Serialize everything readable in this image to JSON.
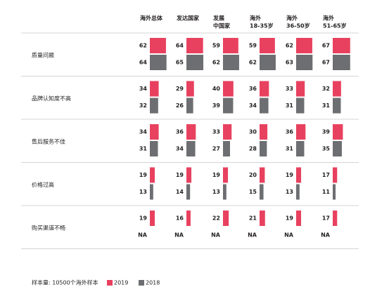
{
  "chart_data": {
    "type": "bar",
    "columns": [
      [
        "海外总体"
      ],
      [
        "发达国家"
      ],
      [
        "发展",
        "中国家"
      ],
      [
        "海外",
        "18-35岁"
      ],
      [
        "海外",
        "36-50岁"
      ],
      [
        "海外",
        "51-65岁"
      ]
    ],
    "categories": [
      "质量问题",
      "品牌认知度不高",
      "售后服务不佳",
      "价格过高",
      "购买渠道不畅"
    ],
    "series": [
      {
        "name": "2019",
        "color": "#e8415f",
        "values": [
          [
            62,
            64,
            59,
            59,
            62,
            67
          ],
          [
            34,
            29,
            40,
            36,
            33,
            32
          ],
          [
            34,
            36,
            33,
            30,
            36,
            39
          ],
          [
            19,
            19,
            19,
            20,
            19,
            17
          ],
          [
            19,
            16,
            22,
            21,
            19,
            17
          ]
        ]
      },
      {
        "name": "2018",
        "color": "#6d6e71",
        "values": [
          [
            64,
            65,
            62,
            62,
            63,
            67
          ],
          [
            32,
            26,
            39,
            34,
            31,
            31
          ],
          [
            31,
            34,
            27,
            28,
            31,
            35
          ],
          [
            13,
            14,
            13,
            15,
            13,
            11
          ],
          [
            null,
            null,
            null,
            null,
            null,
            null
          ]
        ],
        "value_labels": [
          [
            null,
            null,
            null,
            null,
            null,
            null
          ],
          [
            null,
            null,
            null,
            null,
            null,
            null
          ],
          [
            null,
            null,
            null,
            null,
            null,
            null
          ],
          [
            null,
            null,
            null,
            null,
            null,
            null
          ],
          [
            "NA",
            "NA",
            "NA",
            "NA",
            "NA",
            "NA"
          ]
        ]
      }
    ],
    "footnote": "样本量: 10500个海外样本"
  }
}
